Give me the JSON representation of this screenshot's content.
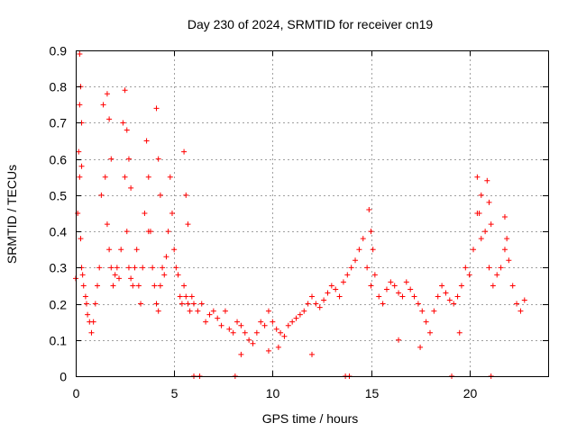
{
  "chart_data": {
    "type": "scatter",
    "title": "Day 230 of 2024, SRMTID for receiver cn19",
    "xlabel": "GPS time / hours",
    "ylabel": "SRMTID / TECUs",
    "xlim": [
      0,
      24
    ],
    "ylim": [
      0,
      0.9
    ],
    "xticks": [
      0,
      5,
      10,
      15,
      20
    ],
    "xtick_labels": [
      "0",
      "5",
      "10",
      "15",
      "20"
    ],
    "yticks": [
      0,
      0.1,
      0.2,
      0.3,
      0.4,
      0.5,
      0.6,
      0.7,
      0.8,
      0.9
    ],
    "ytick_labels": [
      "0",
      "0.1",
      "0.2",
      "0.3",
      "0.4",
      "0.5",
      "0.6",
      "0.7",
      "0.8",
      "0.9"
    ],
    "grid": true,
    "marker": "+",
    "color": "#ff0000",
    "series": [
      {
        "name": "SRMTID",
        "x": [
          0.0,
          0.1,
          0.15,
          0.2,
          0.25,
          0.3,
          0.35,
          0.4,
          0.5,
          0.55,
          0.6,
          0.7,
          0.8,
          0.9,
          1.0,
          1.1,
          1.2,
          1.3,
          1.4,
          1.5,
          1.6,
          1.7,
          1.8,
          1.9,
          2.0,
          2.1,
          2.2,
          2.3,
          2.4,
          2.5,
          2.6,
          2.7,
          2.8,
          2.9,
          3.0,
          3.1,
          3.2,
          3.3,
          3.4,
          3.5,
          3.6,
          3.7,
          3.8,
          3.9,
          4.0,
          4.1,
          4.2,
          4.3,
          4.4,
          4.5,
          4.6,
          4.7,
          4.8,
          4.9,
          5.0,
          5.1,
          5.2,
          5.3,
          5.4,
          5.5,
          5.6,
          5.7,
          5.8,
          5.9,
          6.0,
          6.2,
          6.4,
          6.6,
          6.8,
          7.0,
          7.2,
          7.4,
          7.6,
          7.8,
          8.0,
          8.2,
          8.4,
          8.6,
          8.8,
          9.0,
          9.2,
          9.4,
          9.6,
          9.8,
          10.0,
          10.2,
          10.4,
          10.6,
          10.8,
          11.0,
          11.2,
          11.4,
          11.6,
          11.8,
          12.0,
          12.2,
          12.4,
          12.6,
          12.8,
          13.0,
          13.2,
          13.4,
          13.6,
          13.8,
          14.0,
          14.2,
          14.4,
          14.6,
          14.8,
          15.0,
          15.2,
          15.4,
          15.6,
          15.8,
          16.0,
          16.2,
          16.4,
          16.6,
          16.8,
          17.0,
          17.2,
          17.4,
          17.6,
          17.8,
          18.0,
          18.2,
          18.4,
          18.6,
          18.8,
          19.0,
          19.2,
          19.4,
          19.6,
          19.8,
          20.0,
          20.2,
          20.4,
          20.6,
          20.8,
          21.0,
          21.2,
          21.4,
          21.6,
          21.8,
          22.0,
          22.2,
          22.4,
          22.6,
          22.8,
          0.2,
          0.25,
          0.3,
          0.2,
          0.3,
          1.6,
          1.7,
          1.8,
          2.5,
          2.6,
          2.7,
          2.8,
          3.7,
          4.1,
          4.2,
          4.3,
          5.5,
          5.6,
          5.7,
          14.9,
          15.0,
          15.1,
          20.4,
          20.5,
          20.6,
          20.9,
          21.0,
          21.1,
          21.8,
          21.9,
          10.3,
          12.0,
          16.4,
          17.5,
          19.5,
          8.4,
          9.8,
          6.0,
          6.3,
          8.1,
          13.7,
          13.9,
          19.1,
          21.1
        ],
        "y": [
          0.27,
          0.45,
          0.62,
          0.55,
          0.38,
          0.3,
          0.28,
          0.25,
          0.22,
          0.2,
          0.17,
          0.15,
          0.12,
          0.15,
          0.2,
          0.25,
          0.3,
          0.5,
          0.75,
          0.55,
          0.42,
          0.35,
          0.3,
          0.25,
          0.28,
          0.3,
          0.27,
          0.35,
          0.7,
          0.55,
          0.4,
          0.3,
          0.27,
          0.25,
          0.3,
          0.35,
          0.25,
          0.2,
          0.3,
          0.45,
          0.65,
          0.55,
          0.4,
          0.3,
          0.25,
          0.2,
          0.18,
          0.25,
          0.3,
          0.28,
          0.33,
          0.4,
          0.55,
          0.45,
          0.35,
          0.3,
          0.28,
          0.22,
          0.2,
          0.25,
          0.22,
          0.2,
          0.18,
          0.22,
          0.2,
          0.18,
          0.2,
          0.15,
          0.17,
          0.18,
          0.16,
          0.14,
          0.18,
          0.13,
          0.12,
          0.15,
          0.14,
          0.12,
          0.1,
          0.09,
          0.12,
          0.15,
          0.14,
          0.18,
          0.15,
          0.13,
          0.12,
          0.11,
          0.14,
          0.15,
          0.16,
          0.17,
          0.18,
          0.2,
          0.22,
          0.2,
          0.19,
          0.21,
          0.23,
          0.25,
          0.24,
          0.22,
          0.26,
          0.28,
          0.3,
          0.32,
          0.35,
          0.38,
          0.3,
          0.25,
          0.28,
          0.22,
          0.2,
          0.24,
          0.26,
          0.25,
          0.23,
          0.22,
          0.26,
          0.24,
          0.22,
          0.2,
          0.18,
          0.15,
          0.12,
          0.18,
          0.22,
          0.25,
          0.23,
          0.21,
          0.2,
          0.22,
          0.25,
          0.3,
          0.28,
          0.35,
          0.45,
          0.5,
          0.4,
          0.3,
          0.25,
          0.28,
          0.3,
          0.35,
          0.32,
          0.25,
          0.2,
          0.18,
          0.21,
          0.89,
          0.8,
          0.7,
          0.75,
          0.58,
          0.78,
          0.71,
          0.6,
          0.79,
          0.68,
          0.6,
          0.52,
          0.4,
          0.74,
          0.6,
          0.5,
          0.62,
          0.5,
          0.42,
          0.46,
          0.4,
          0.35,
          0.55,
          0.45,
          0.38,
          0.54,
          0.48,
          0.42,
          0.44,
          0.38,
          0.08,
          0.06,
          0.1,
          0.08,
          0.12,
          0.06,
          0.07,
          0.0,
          0.0,
          0.0,
          0.0,
          0.0,
          0.0,
          0.0
        ]
      }
    ]
  }
}
